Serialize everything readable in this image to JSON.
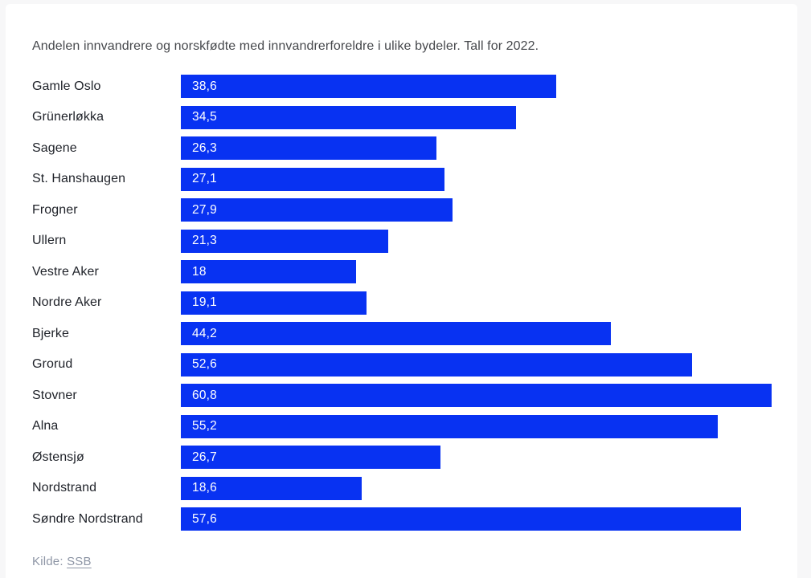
{
  "page": {
    "background_color": "#f7f7f8",
    "card_color": "#ffffff"
  },
  "chart_data": {
    "type": "bar",
    "orientation": "horizontal",
    "title": "Andelen innvandrere og norskfødte med innvandrerforeldre i ulike bydeler. Tall for 2022.",
    "categories": [
      "Gamle Oslo",
      "Grünerløkka",
      "Sagene",
      "St. Hanshaugen",
      "Frogner",
      "Ullern",
      "Vestre Aker",
      "Nordre Aker",
      "Bjerke",
      "Grorud",
      "Stovner",
      "Alna",
      "Østensjø",
      "Nordstrand",
      "Søndre Nordstrand"
    ],
    "values": [
      38.6,
      34.5,
      26.3,
      27.1,
      27.9,
      21.3,
      18,
      19.1,
      44.2,
      52.6,
      60.8,
      55.2,
      26.7,
      18.6,
      57.6
    ],
    "value_labels": [
      "38,6",
      "34,5",
      "26,3",
      "27,1",
      "27,9",
      "21,3",
      "18",
      "19,1",
      "44,2",
      "52,6",
      "60,8",
      "55,2",
      "26,7",
      "18,6",
      "57,6"
    ],
    "xlabel": "",
    "ylabel": "",
    "xlim": [
      0,
      62
    ],
    "grid": false,
    "legend": "none",
    "bar_color": "#0832f2",
    "value_label_color": "#ffffff",
    "title_color": "#46484c",
    "category_label_color": "#1e2128"
  },
  "source": {
    "prefix": "Kilde: ",
    "link_label": "SSB",
    "text_color": "#8d95a5"
  }
}
